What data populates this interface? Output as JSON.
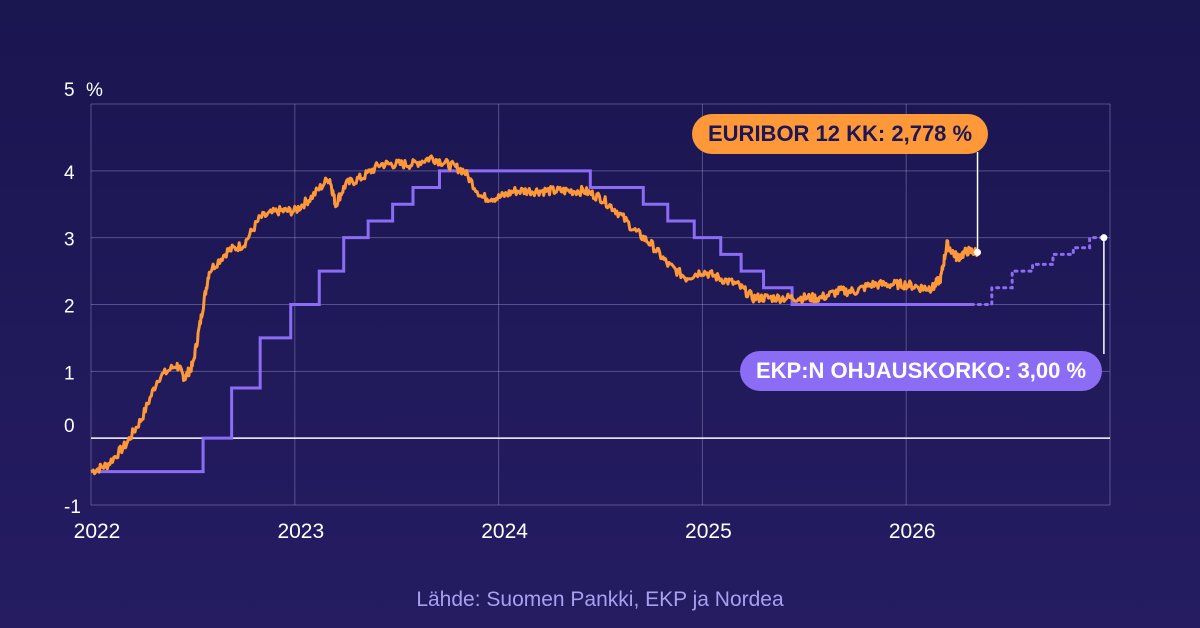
{
  "chart_data": {
    "type": "line",
    "unit": "%",
    "y_ticks": [
      "5",
      "4",
      "3",
      "2",
      "1",
      "0",
      "-1"
    ],
    "ylim": [
      -1,
      5
    ],
    "x_ticks": [
      "2022",
      "2023",
      "2024",
      "2025",
      "2026"
    ],
    "xlim": [
      2022.0,
      2027.0
    ],
    "colors": {
      "euribor": "#ff9838",
      "ekp": "#8b6cf5",
      "background": "#1d1855"
    },
    "grid": true,
    "series": [
      {
        "name": "EURIBOR 12 KK",
        "style": "noisy-line",
        "x": [
          2022.0,
          2022.08,
          2022.17,
          2022.25,
          2022.33,
          2022.42,
          2022.46,
          2022.5,
          2022.54,
          2022.58,
          2022.67,
          2022.75,
          2022.83,
          2022.92,
          2023.0,
          2023.08,
          2023.17,
          2023.2,
          2023.25,
          2023.33,
          2023.42,
          2023.5,
          2023.58,
          2023.67,
          2023.75,
          2023.83,
          2023.92,
          2024.0,
          2024.08,
          2024.17,
          2024.25,
          2024.33,
          2024.42,
          2024.5,
          2024.58,
          2024.67,
          2024.75,
          2024.83,
          2024.92,
          2025.0,
          2025.08,
          2025.17,
          2025.25,
          2025.33,
          2025.42,
          2025.5,
          2025.58,
          2025.67,
          2025.75,
          2025.83,
          2025.92,
          2026.0,
          2026.08,
          2026.13,
          2026.17,
          2026.2,
          2026.25,
          2026.3,
          2026.35
        ],
        "y": [
          -0.5,
          -0.4,
          -0.1,
          0.3,
          0.9,
          1.1,
          0.9,
          1.1,
          1.8,
          2.5,
          2.8,
          2.9,
          3.3,
          3.4,
          3.4,
          3.6,
          3.9,
          3.5,
          3.8,
          3.9,
          4.1,
          4.1,
          4.1,
          4.2,
          4.1,
          4.0,
          3.6,
          3.6,
          3.7,
          3.7,
          3.7,
          3.7,
          3.7,
          3.6,
          3.4,
          3.1,
          2.9,
          2.6,
          2.4,
          2.5,
          2.4,
          2.3,
          2.1,
          2.1,
          2.1,
          2.1,
          2.1,
          2.2,
          2.2,
          2.3,
          2.3,
          2.3,
          2.25,
          2.25,
          2.4,
          2.9,
          2.7,
          2.8,
          2.78
        ]
      },
      {
        "name": "EKP:N OHJAUSKORKO",
        "style": "step",
        "x": [
          2022.0,
          2022.55,
          2022.69,
          2022.83,
          2022.98,
          2023.12,
          2023.24,
          2023.36,
          2023.48,
          2023.58,
          2023.71,
          2024.45,
          2024.71,
          2024.83,
          2024.96,
          2025.09,
          2025.19,
          2025.3,
          2025.44,
          2026.32
        ],
        "y": [
          -0.5,
          0.0,
          0.75,
          1.5,
          2.0,
          2.5,
          3.0,
          3.25,
          3.5,
          3.75,
          4.0,
          3.75,
          3.5,
          3.25,
          3.0,
          2.75,
          2.5,
          2.25,
          2.0,
          2.0
        ]
      },
      {
        "name": "EKP:N OHJAUSKORKO ennuste",
        "style": "step-dotted",
        "x": [
          2026.32,
          2026.42,
          2026.52,
          2026.62,
          2026.72,
          2026.82,
          2026.9,
          2026.97
        ],
        "y": [
          2.0,
          2.25,
          2.5,
          2.6,
          2.75,
          2.85,
          3.0,
          3.0
        ]
      }
    ]
  },
  "callouts": {
    "euribor": {
      "label": "EURIBOR 12 KK: 2,778 %",
      "color": "#ff9838",
      "text_color": "#1d1855"
    },
    "ekp": {
      "label": "EKP:N OHJAUSKORKO: 3,00 %",
      "color": "#8b6cf5",
      "text_color": "#ffffff"
    }
  },
  "source": "Lähde: Suomen Pankki, EKP ja Nordea"
}
